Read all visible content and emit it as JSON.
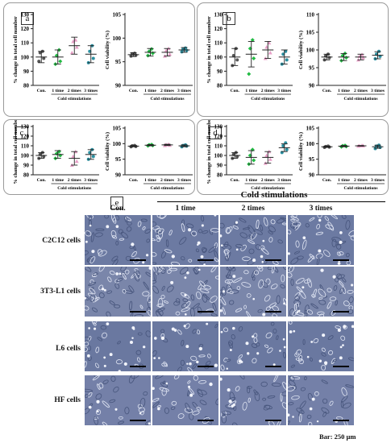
{
  "y_labels": {
    "count": "% change in total cell number",
    "viability": "Cell viability (%)"
  },
  "group_labels": [
    "Con.",
    "1 time",
    "2 times",
    "3 times"
  ],
  "stim_label": "Cold stimulations",
  "colors": {
    "con": "#555555",
    "one": "#22bb44",
    "two": "#e8a0c8",
    "three": "#2a8fa0"
  },
  "panels": [
    {
      "label": "a",
      "count": {
        "yticks": [
          "80",
          "90",
          "100",
          "110",
          "120",
          "130"
        ],
        "ylim": [
          80,
          130
        ],
        "means": [
          100,
          100,
          108,
          102
        ],
        "sd": [
          4,
          5,
          6,
          6
        ],
        "points": [
          [
            97,
            99,
            103,
            104
          ],
          [
            95,
            97,
            101,
            105
          ],
          [
            103,
            107,
            111,
            112
          ],
          [
            96,
            99,
            104,
            108
          ]
        ]
      },
      "viability": {
        "yticks": [
          "90",
          "95",
          "100",
          "105"
        ],
        "ylim": [
          90,
          105
        ],
        "means": [
          96.5,
          97,
          97,
          97.5
        ],
        "sd": [
          0.4,
          0.8,
          0.8,
          0.5
        ],
        "points": [
          [
            96.2,
            96.4,
            96.7,
            96.8
          ],
          [
            96.3,
            96.8,
            97.2,
            97.7
          ],
          [
            96.2,
            96.6,
            97.3,
            97.8
          ],
          [
            97.1,
            97.4,
            97.6,
            97.9
          ]
        ]
      }
    },
    {
      "label": "b",
      "count": {
        "yticks": [
          "80",
          "90",
          "100",
          "110",
          "120",
          "130"
        ],
        "ylim": [
          80,
          130
        ],
        "means": [
          100,
          102,
          105,
          100
        ],
        "sd": [
          6,
          9,
          6,
          5
        ],
        "points": [
          [
            94,
            98,
            101,
            106
          ],
          [
            88,
            99,
            106,
            112
          ],
          [
            99,
            103,
            107,
            110
          ],
          [
            95,
            98,
            102,
            104
          ]
        ]
      },
      "viability": {
        "yticks": [
          "90",
          "95",
          "100",
          "105",
          "110"
        ],
        "ylim": [
          90,
          110
        ],
        "means": [
          98,
          98,
          98,
          98.5
        ],
        "sd": [
          0.8,
          1.0,
          0.8,
          1.0
        ],
        "points": [
          [
            97.2,
            97.8,
            98.3,
            98.8
          ],
          [
            97.0,
            97.8,
            98.4,
            99.0
          ],
          [
            97.2,
            97.8,
            98.2,
            98.7
          ],
          [
            97.5,
            98.2,
            98.8,
            99.6
          ]
        ]
      }
    },
    {
      "label": "c",
      "count": {
        "yticks": [
          "80",
          "90",
          "100",
          "110",
          "120",
          "130"
        ],
        "ylim": [
          80,
          130
        ],
        "means": [
          100,
          101,
          97,
          101
        ],
        "sd": [
          3,
          4,
          7,
          5
        ],
        "points": [
          [
            97,
            99,
            101,
            103
          ],
          [
            97,
            100,
            102,
            104
          ],
          [
            90,
            94,
            99,
            104
          ],
          [
            96,
            99,
            103,
            106
          ]
        ]
      },
      "viability": {
        "yticks": [
          "90",
          "95",
          "100",
          "105"
        ],
        "ylim": [
          90,
          105
        ],
        "means": [
          99.2,
          99.5,
          99.6,
          99.3
        ],
        "sd": [
          0.2,
          0.2,
          0.2,
          0.3
        ],
        "points": [
          [
            99.0,
            99.1,
            99.3,
            99.4
          ],
          [
            99.3,
            99.4,
            99.6,
            99.7
          ],
          [
            99.4,
            99.5,
            99.7,
            99.8
          ],
          [
            99.0,
            99.2,
            99.4,
            99.6
          ]
        ]
      }
    },
    {
      "label": "d",
      "count": {
        "yticks": [
          "80",
          "90",
          "100",
          "110",
          "120",
          "130"
        ],
        "ylim": [
          80,
          130
        ],
        "means": [
          100,
          98,
          98,
          108
        ],
        "sd": [
          3,
          7,
          6,
          4
        ],
        "points": [
          [
            97,
            99,
            101,
            103
          ],
          [
            91,
            95,
            100,
            106
          ],
          [
            92,
            96,
            100,
            104
          ],
          [
            103,
            106,
            110,
            113
          ]
        ]
      },
      "viability": {
        "yticks": [
          "90",
          "95",
          "100",
          "105"
        ],
        "ylim": [
          90,
          105
        ],
        "means": [
          99,
          99.2,
          99.3,
          99
        ],
        "sd": [
          0.2,
          0.2,
          0.1,
          0.5
        ],
        "points": [
          [
            98.8,
            98.9,
            99.1,
            99.2
          ],
          [
            99.0,
            99.1,
            99.3,
            99.4
          ],
          [
            99.2,
            99.3,
            99.3,
            99.4
          ],
          [
            98.4,
            98.8,
            99.2,
            99.5
          ]
        ]
      }
    }
  ],
  "figure_e": {
    "label": "e",
    "header_stim": "Cold stimulations",
    "columns": [
      "Con.",
      "1 time",
      "2 times",
      "3 times"
    ],
    "rows": [
      "C2C12 cells",
      "3T3-L1 cells",
      "L6 cells",
      "HF cells"
    ],
    "scale_note": "Bar: 250 µm"
  }
}
